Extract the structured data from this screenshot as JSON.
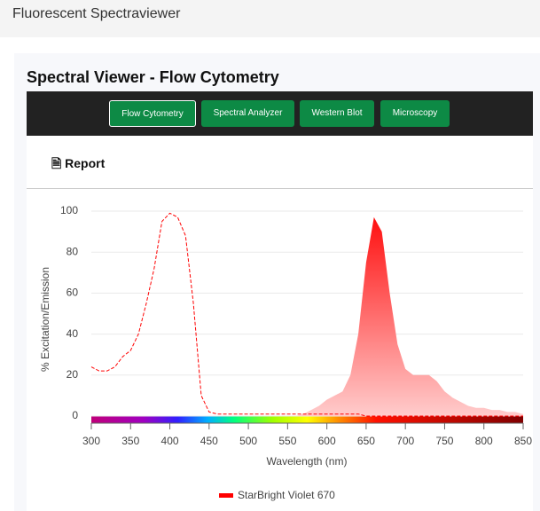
{
  "header": {
    "title": "Fluorescent Spectraviewer"
  },
  "card": {
    "title": "Spectral Viewer - Flow Cytometry",
    "tabs": [
      "Flow Cytometry",
      "Spectral Analyzer",
      "Western Blot",
      "Microscopy"
    ],
    "active_tab": 0,
    "report": "Report"
  },
  "chart_data": {
    "type": "spectrum",
    "ylabel": "% Excitation/Emission",
    "xlabel": "Wavelength (nm)",
    "x": [
      300,
      310,
      320,
      330,
      340,
      350,
      360,
      370,
      380,
      390,
      400,
      410,
      420,
      430,
      440,
      450,
      460,
      470,
      480,
      490,
      500,
      510,
      520,
      530,
      540,
      550,
      560,
      570,
      580,
      590,
      600,
      610,
      620,
      630,
      640,
      650,
      660,
      670,
      680,
      690,
      700,
      710,
      720,
      730,
      740,
      750,
      760,
      770,
      780,
      790,
      800,
      810,
      820,
      830,
      840,
      850
    ],
    "series": [
      {
        "name": "StarBright Violet 670",
        "color": "#ff0000",
        "excitation": [
          24,
          22,
          22,
          24,
          29,
          32,
          40,
          55,
          72,
          95,
          99,
          97,
          88,
          55,
          10,
          2,
          1,
          1,
          1,
          1,
          1,
          1,
          1,
          1,
          1,
          1,
          1,
          1,
          1,
          1,
          1,
          1,
          1,
          1,
          1,
          0,
          0,
          0,
          0,
          0,
          0,
          0,
          0,
          0,
          0,
          0,
          0,
          0,
          0,
          0,
          0,
          0,
          0,
          0,
          0,
          0
        ],
        "emission": [
          0,
          0,
          0,
          0,
          0,
          0,
          0,
          0,
          0,
          0,
          0,
          0,
          0,
          0,
          0,
          0,
          0,
          0,
          0,
          0,
          0,
          0,
          0,
          0,
          0,
          0,
          0,
          1,
          3,
          5,
          8,
          10,
          12,
          20,
          40,
          75,
          97,
          90,
          60,
          35,
          23,
          20,
          20,
          20,
          17,
          12,
          9,
          7,
          5,
          4,
          4,
          3,
          3,
          2,
          2,
          1
        ]
      }
    ],
    "xlim": [
      300,
      850
    ],
    "xticks": [
      300,
      350,
      400,
      450,
      500,
      550,
      600,
      650,
      700,
      750,
      800,
      850
    ],
    "ylim": [
      0,
      100
    ],
    "yticks": [
      0,
      20,
      40,
      60,
      80,
      100
    ],
    "grid": true
  }
}
